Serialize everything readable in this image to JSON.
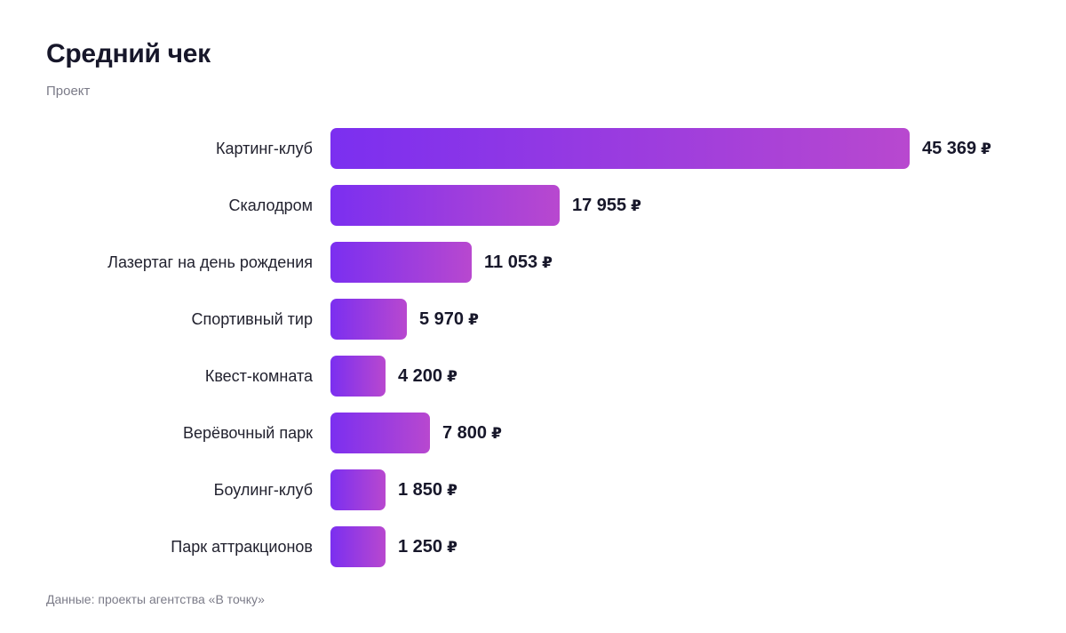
{
  "header": {
    "title": "Средний чек",
    "subtitle": "Проект"
  },
  "footer": {
    "source": "Данные: проекты агентства «В точку»"
  },
  "colors": {
    "bar_start": "#7b2ff0",
    "bar_end": "#b848cf",
    "text": "#17172a",
    "muted": "#7b7b88"
  },
  "chart_data": {
    "type": "bar",
    "orientation": "horizontal",
    "title": "Средний чек",
    "subtitle": "Проект",
    "categories": [
      "Картинг-клуб",
      "Скалодром",
      "Лазертаг на день рождения",
      "Спортивный тир",
      "Квест-комната",
      "Верёвочный парк",
      "Боулинг-клуб",
      "Парк аттракционов"
    ],
    "values": [
      45369,
      17955,
      11053,
      5970,
      4200,
      7800,
      1850,
      1250
    ],
    "value_labels": [
      "45 369",
      "17 955",
      "11 053",
      "5 970",
      "4 200",
      "7 800",
      "1 850",
      "1 250"
    ],
    "currency": "₽",
    "xlabel": "",
    "ylabel": "",
    "grid": false,
    "legend": "none"
  }
}
